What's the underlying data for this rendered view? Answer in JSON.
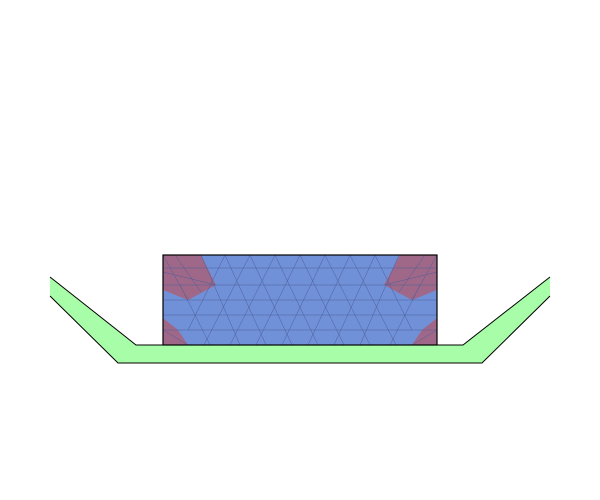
{
  "scene": {
    "name": "fem-mesh-contact-view",
    "colors": {
      "background": "#ffffff",
      "ground_fill": "#a8fda8",
      "ground_stroke": "#000000",
      "body_fill": "#7090d8",
      "contact_fill": "#a06888",
      "mesh_stroke": "#4c5e9a",
      "body_outline": "#000000"
    },
    "regions": {
      "ground": "ground-channel",
      "block": "deformable-block",
      "contact_zones": [
        "contact-zone-top-left",
        "contact-zone-top-right",
        "contact-zone-bottom-left",
        "contact-zone-bottom-right"
      ]
    }
  }
}
